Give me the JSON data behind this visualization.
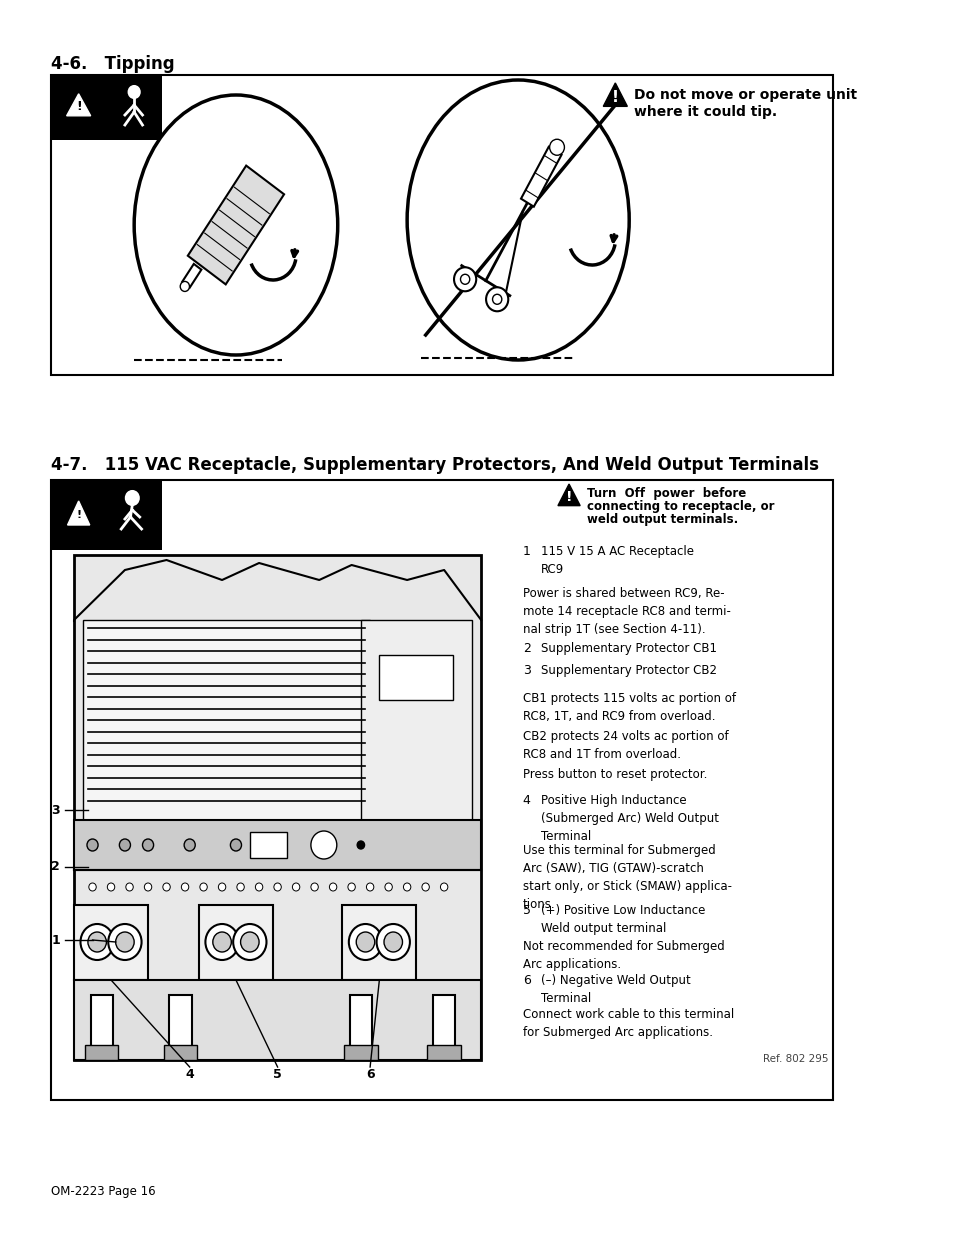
{
  "bg_color": "#ffffff",
  "section1_title": "4-6.   Tipping",
  "section2_title": "4-7.   115 VAC Receptacle, Supplementary Protectors, And Weld Output Terminals",
  "warning_text1_line1": "Do not move or operate unit",
  "warning_text1_line2": "where it could tip.",
  "warning_text2_line1": "Turn  Off  power  before",
  "warning_text2_line2": "connecting to receptacle, or",
  "warning_text2_line3": "weld output terminals.",
  "item1_text": "115 V 15 A AC Receptacle\nRC9",
  "power_shared_text": "Power is shared between RC9, Re-\nmote 14 receptacle RC8 and termi-\nnal strip 1T (see Section 4-11).",
  "item2_text": "Supplementary Protector CB1",
  "item3_text": "Supplementary Protector CB2",
  "cb1_text": "CB1 protects 115 volts ac portion of\nRC8, 1T, and RC9 from overload.",
  "cb2_text": "CB2 protects 24 volts ac portion of\nRC8 and 1T from overload.",
  "press_text": "Press button to reset protector.",
  "item4_text": "Positive High Inductance\n(Submerged Arc) Weld Output\nTerminal",
  "use_text": "Use this terminal for Submerged\nArc (SAW), TIG (GTAW)-scratch\nstart only, or Stick (SMAW) applica-\ntions.",
  "item5_text": "(+) Positive Low Inductance\nWeld output terminal",
  "not_rec_text": "Not recommended for Submerged\nArc applications.",
  "item6_text": "(–) Negative Weld Output\nTerminal",
  "connect_text": "Connect work cable to this terminal\nfor Submerged Arc applications.",
  "ref_text": "Ref. 802 295",
  "footer_text": "OM-2223 Page 16",
  "title_fontsize": 12,
  "body_fontsize": 8.5,
  "label_fontsize": 9
}
